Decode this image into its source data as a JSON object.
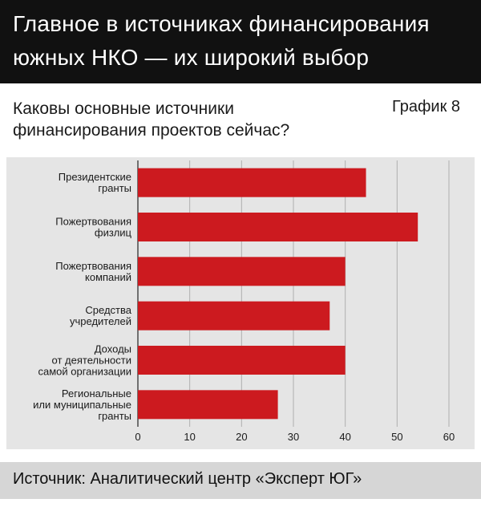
{
  "header": {
    "line1": "Главное в источниках финансирования",
    "line2": "южных НКО — их широкий выбор"
  },
  "question": {
    "line1": "Каковы основные источники",
    "line2": "финансирования проектов сейчас?"
  },
  "figure_label": "График 8",
  "chart_data": {
    "type": "bar",
    "orientation": "horizontal",
    "categories": [
      [
        "Президентские",
        "гранты"
      ],
      [
        "Пожертвования",
        "физлиц"
      ],
      [
        "Пожертвования",
        "компаний"
      ],
      [
        "Средства",
        "учредителей"
      ],
      [
        "Доходы",
        "от деятельности",
        "самой организации"
      ],
      [
        "Региональные",
        "или муниципальные",
        "гранты"
      ]
    ],
    "values": [
      44,
      54,
      40,
      37,
      40,
      27
    ],
    "xlim": [
      0,
      60
    ],
    "xticks": [
      0,
      10,
      20,
      30,
      40,
      50,
      60
    ],
    "grid": true,
    "bar_color": "#cc1a1f",
    "grid_color": "#b0b0b0"
  },
  "source": "Источник: Аналитический центр «Эксперт ЮГ»"
}
